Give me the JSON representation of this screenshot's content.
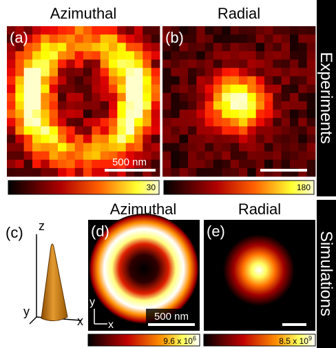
{
  "rows": {
    "experiments": "Experiments",
    "simulations": "Simulations"
  },
  "panels": {
    "a": {
      "label": "(a)",
      "title": "Azimuthal",
      "scale_bar": "500 nm",
      "colorbar_max": 30
    },
    "b": {
      "label": "(b)",
      "title": "Radial",
      "colorbar_max": 180
    },
    "c": {
      "label": "(c)",
      "axes": {
        "z": "z",
        "y": "y",
        "x": "x"
      }
    },
    "d": {
      "label": "(d)",
      "title": "Azimuthal",
      "scale_bar": "500 nm",
      "axes": {
        "y": "y",
        "x": "x"
      },
      "colorbar_max": {
        "mantissa": "9.6 x 10",
        "exponent": "6"
      }
    },
    "e": {
      "label": "(e)",
      "title": "Radial",
      "colorbar_max": {
        "mantissa": "8.5 x 10",
        "exponent": "9"
      }
    }
  }
}
